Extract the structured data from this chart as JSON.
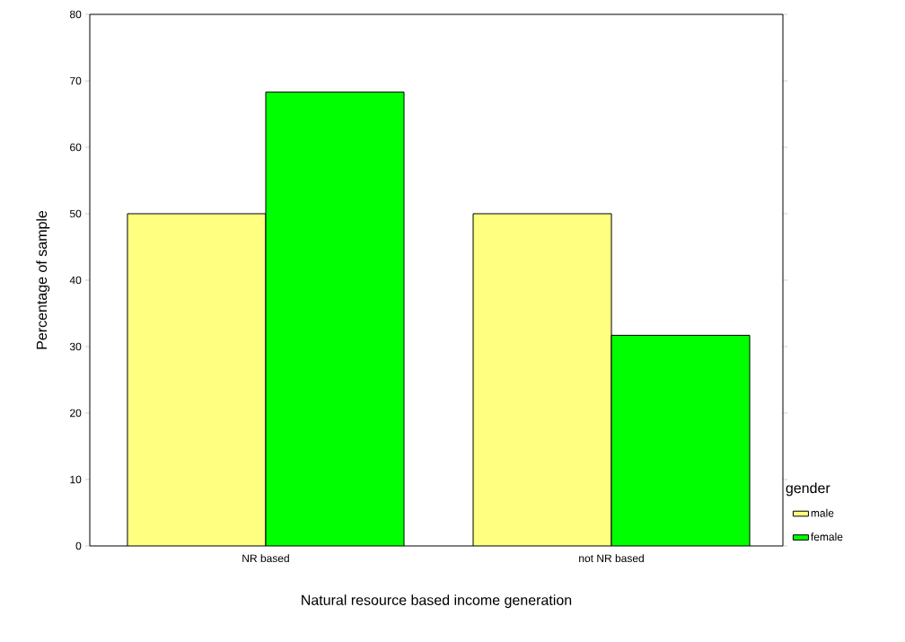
{
  "chart_data": {
    "type": "bar",
    "xlabel": "Natural resource based income generation",
    "ylabel": "Percentage of sample",
    "legend_title": "gender",
    "categories": [
      "NR based",
      "not NR based"
    ],
    "series": [
      {
        "name": "male",
        "color": "#ffff80",
        "values": [
          50,
          50
        ]
      },
      {
        "name": "female",
        "color": "#00ff00",
        "values": [
          68.3,
          31.7
        ]
      }
    ],
    "ylim": [
      0,
      80
    ],
    "yticks": [
      0,
      10,
      20,
      30,
      40,
      50,
      60,
      70,
      80
    ],
    "legend": "bottom right",
    "grid": false
  }
}
